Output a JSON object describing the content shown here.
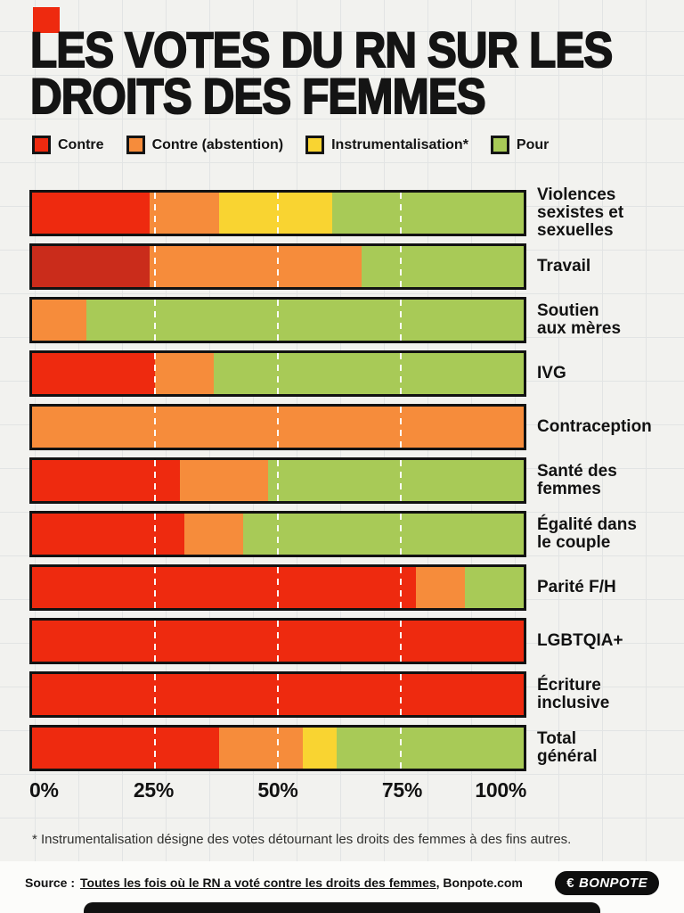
{
  "header": {
    "title_line1": "LES VOTES DU RN SUR LES",
    "title_line2": "DROITS DES FEMMES"
  },
  "colors": {
    "red": "#ee2a0f",
    "red_dark": "#ca2c1b",
    "orange": "#f68c3b",
    "yellow": "#f9d431",
    "green": "#a8ca57",
    "background": "#f2f2ef",
    "black": "#121212"
  },
  "chart_data": {
    "type": "bar",
    "stacked": true,
    "orientation": "horizontal",
    "title": "Les votes du RN sur les droits des femmes",
    "unit": "%",
    "xlim": [
      0,
      100
    ],
    "x_ticks": [
      "0%",
      "25%",
      "50%",
      "75%",
      "100%"
    ],
    "gridlines_percent": [
      25,
      50,
      75
    ],
    "legend_position": "top",
    "legend": [
      "Contre",
      "Contre (abstention)",
      "Instrumentalisation*",
      "Pour"
    ],
    "categories": [
      "Violences sexistes et sexuelles",
      "Travail",
      "Soutien aux mères",
      "IVG",
      "Contraception",
      "Santé des femmes",
      "Égalité dans le couple",
      "Parité F/H",
      "LGBTQIA+",
      "Écriture inclusive",
      "Total général"
    ],
    "category_labels": [
      "Violences\nsexistes et\nsexuelles",
      "Travail",
      "Soutien\naux mères",
      "IVG",
      "Contraception",
      "Santé des\nfemmes",
      "Égalité dans\nle couple",
      "Parité F/H",
      "LGBTQIA+",
      "Écriture\ninclusive",
      "Total\ngénéral"
    ],
    "series": [
      {
        "name": "Contre",
        "key": "contre",
        "color": "#ee2a0f",
        "values": [
          24,
          24,
          0,
          25,
          0,
          30,
          31,
          78,
          100,
          100,
          38
        ]
      },
      {
        "name": "Contre (abstention)",
        "key": "contre-abstention",
        "color": "#f68c3b",
        "values": [
          14,
          43,
          11,
          12,
          100,
          18,
          12,
          10,
          0,
          0,
          17
        ]
      },
      {
        "name": "Instrumentalisation*",
        "key": "instrumentalisation",
        "color": "#f9d431",
        "values": [
          23,
          0,
          0,
          0,
          0,
          0,
          0,
          0,
          0,
          0,
          7
        ]
      },
      {
        "name": "Pour",
        "key": "pour",
        "color": "#a8ca57",
        "values": [
          39,
          33,
          89,
          63,
          0,
          52,
          57,
          12,
          0,
          0,
          38
        ]
      }
    ],
    "cell_color_overrides": [
      {
        "row": 1,
        "series": 0,
        "color": "#ca2c1b"
      }
    ]
  },
  "footnote": "* Instrumentalisation désigne des votes détournant les droits des femmes à des fins autres.",
  "footer": {
    "source_label": "Source :",
    "source_link": "Toutes les fois où le RN a voté contre les droits des femmes",
    "source_suffix": ", Bonpote.com",
    "logo_icon": "€",
    "logo_text": "BONPOTE"
  }
}
